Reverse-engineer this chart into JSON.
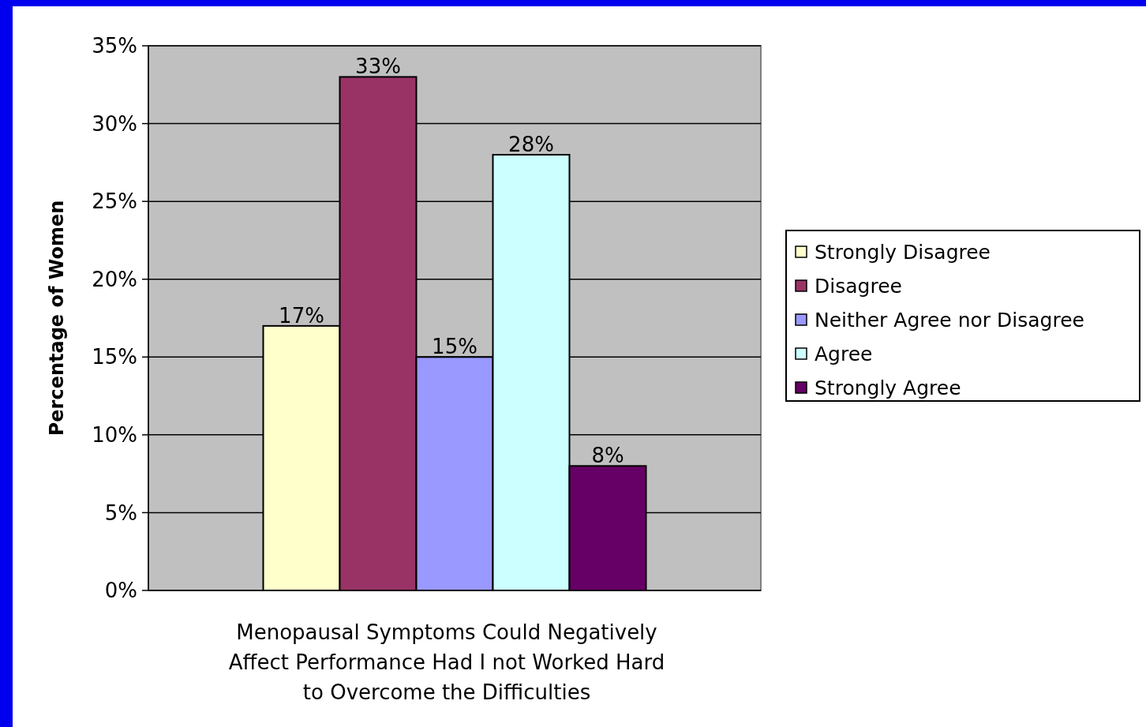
{
  "chart_data": {
    "type": "bar",
    "ylabel": "Percentage of Women",
    "xlabel": "Menopausal Symptoms Could Negatively Affect Performance Had I not Worked Hard to Overcome the Difficulties",
    "categories": [
      null
    ],
    "series": [
      {
        "name": "Strongly Disagree",
        "color": "#ffffcc",
        "values": [
          17
        ],
        "value_labels": [
          "17%"
        ]
      },
      {
        "name": "Disagree",
        "color": "#993366",
        "values": [
          33
        ],
        "value_labels": [
          "33%"
        ]
      },
      {
        "name": "Neither Agree nor Disagree",
        "color": "#9999ff",
        "values": [
          15
        ],
        "value_labels": [
          "15%"
        ]
      },
      {
        "name": "Agree",
        "color": "#ccffff",
        "values": [
          28
        ],
        "value_labels": [
          "28%"
        ]
      },
      {
        "name": "Strongly Agree",
        "color": "#660066",
        "values": [
          8
        ],
        "value_labels": [
          "8%"
        ]
      }
    ],
    "ylim": [
      0,
      35
    ],
    "yticks": [
      {
        "value": 0,
        "label": "0%"
      },
      {
        "value": 5,
        "label": "5%"
      },
      {
        "value": 10,
        "label": "10%"
      },
      {
        "value": 15,
        "label": "15%"
      },
      {
        "value": 20,
        "label": "20%"
      },
      {
        "value": 25,
        "label": "25%"
      },
      {
        "value": 30,
        "label": "30%"
      },
      {
        "value": 35,
        "label": "35%"
      }
    ],
    "grid": "y",
    "legend": "right"
  }
}
